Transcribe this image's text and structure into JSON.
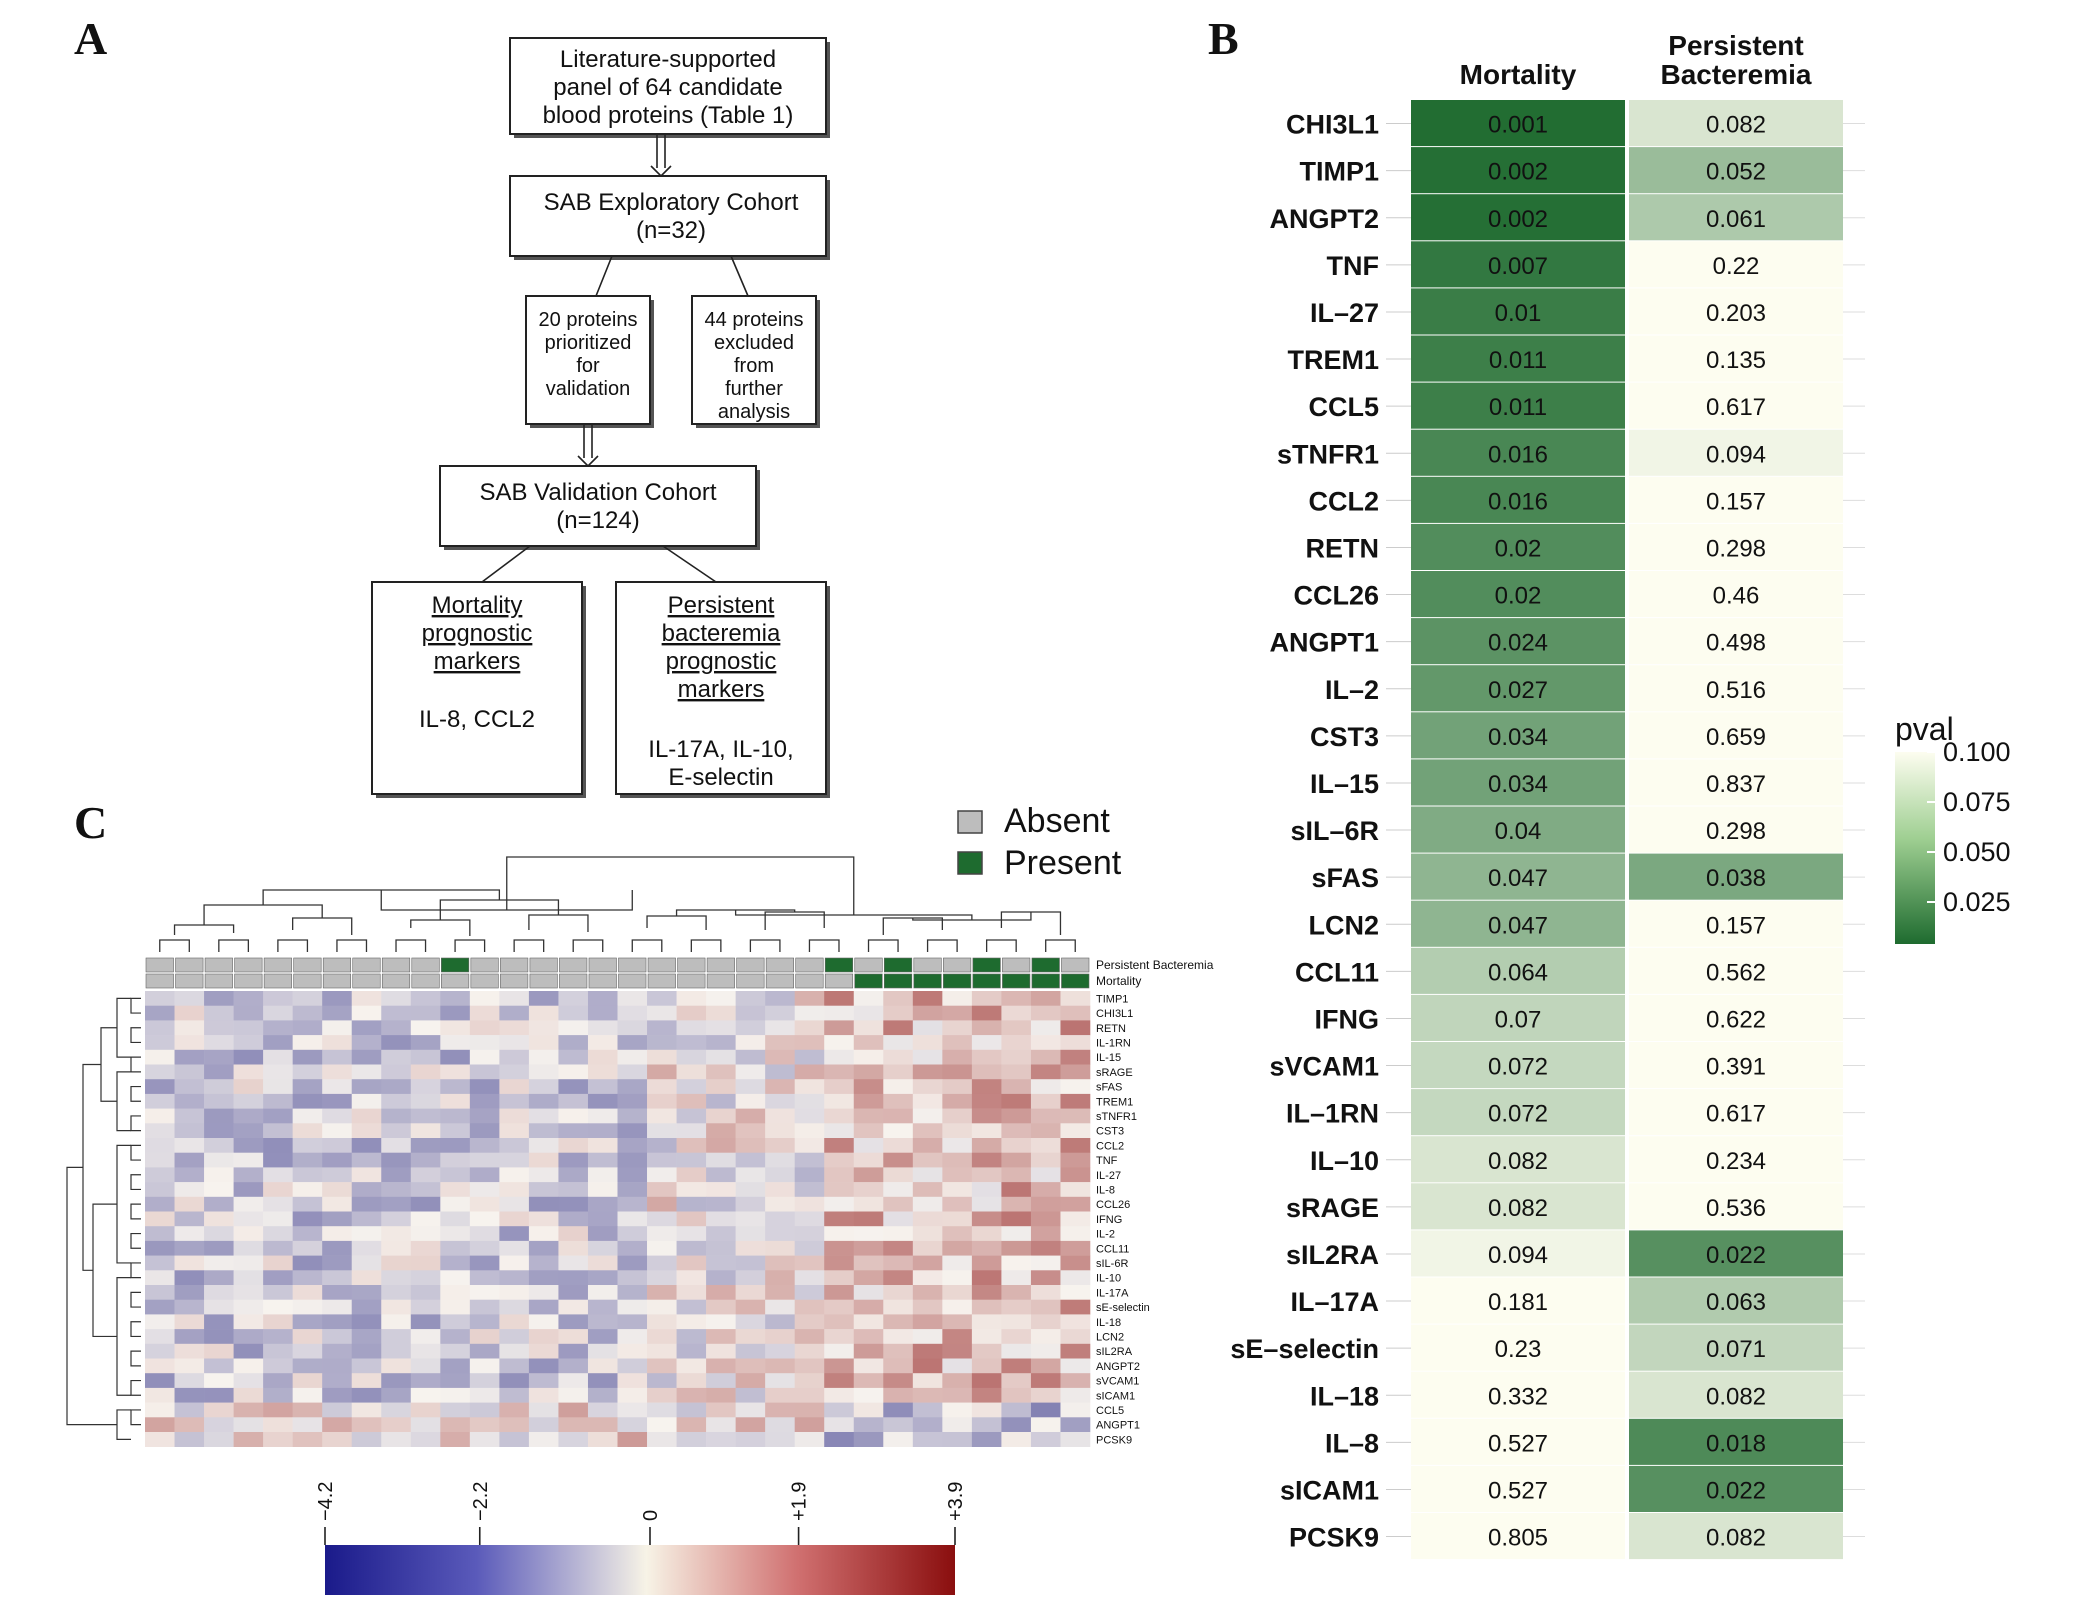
{
  "panels": {
    "a": "A",
    "b": "B",
    "c": "C"
  },
  "flowchart": {
    "box1": [
      "Literature-supported",
      "panel of 64 candidate",
      "blood proteins (Table 1)"
    ],
    "box2": [
      "SAB Exploratory Cohort",
      "(n=32)"
    ],
    "box3": [
      "20 proteins",
      "prioritized",
      "for",
      "validation"
    ],
    "box4": [
      "44 proteins",
      "excluded",
      "from",
      "further",
      "analysis"
    ],
    "box5": [
      "SAB Validation Cohort",
      "(n=124)"
    ],
    "box6_title": [
      "Mortality",
      "prognostic",
      "markers"
    ],
    "box6_body": [
      "IL-8, CCL2"
    ],
    "box7_title": [
      "Persistent",
      "bacteremia",
      "prognostic",
      "markers"
    ],
    "box7_body": [
      "IL-17A, IL-10,",
      "E-selectin"
    ]
  },
  "pval_table": {
    "col1_header": "Mortality",
    "col2_header": [
      "Persistent",
      "Bacteremia"
    ],
    "legend_title": "pval",
    "legend_ticks": [
      "0.100",
      "0.075",
      "0.050",
      "0.025"
    ],
    "colors": {
      "low": "#1e6b2f",
      "high": "#fdfdf0"
    },
    "rows": [
      {
        "protein": "CHI3L1",
        "mortality": "0.001",
        "bacteremia": "0.082"
      },
      {
        "protein": "TIMP1",
        "mortality": "0.002",
        "bacteremia": "0.052"
      },
      {
        "protein": "ANGPT2",
        "mortality": "0.002",
        "bacteremia": "0.061"
      },
      {
        "protein": "TNF",
        "mortality": "0.007",
        "bacteremia": "0.22"
      },
      {
        "protein": "IL–27",
        "mortality": "0.01",
        "bacteremia": "0.203"
      },
      {
        "protein": "TREM1",
        "mortality": "0.011",
        "bacteremia": "0.135"
      },
      {
        "protein": "CCL5",
        "mortality": "0.011",
        "bacteremia": "0.617"
      },
      {
        "protein": "sTNFR1",
        "mortality": "0.016",
        "bacteremia": "0.094"
      },
      {
        "protein": "CCL2",
        "mortality": "0.016",
        "bacteremia": "0.157"
      },
      {
        "protein": "RETN",
        "mortality": "0.02",
        "bacteremia": "0.298"
      },
      {
        "protein": "CCL26",
        "mortality": "0.02",
        "bacteremia": "0.46"
      },
      {
        "protein": "ANGPT1",
        "mortality": "0.024",
        "bacteremia": "0.498"
      },
      {
        "protein": "IL–2",
        "mortality": "0.027",
        "bacteremia": "0.516"
      },
      {
        "protein": "CST3",
        "mortality": "0.034",
        "bacteremia": "0.659"
      },
      {
        "protein": "IL–15",
        "mortality": "0.034",
        "bacteremia": "0.837"
      },
      {
        "protein": "sIL–6R",
        "mortality": "0.04",
        "bacteremia": "0.298"
      },
      {
        "protein": "sFAS",
        "mortality": "0.047",
        "bacteremia": "0.038"
      },
      {
        "protein": "LCN2",
        "mortality": "0.047",
        "bacteremia": "0.157"
      },
      {
        "protein": "CCL11",
        "mortality": "0.064",
        "bacteremia": "0.562"
      },
      {
        "protein": "IFNG",
        "mortality": "0.07",
        "bacteremia": "0.622"
      },
      {
        "protein": "sVCAM1",
        "mortality": "0.072",
        "bacteremia": "0.391"
      },
      {
        "protein": "IL–1RN",
        "mortality": "0.072",
        "bacteremia": "0.617"
      },
      {
        "protein": "IL–10",
        "mortality": "0.082",
        "bacteremia": "0.234"
      },
      {
        "protein": "sRAGE",
        "mortality": "0.082",
        "bacteremia": "0.536"
      },
      {
        "protein": "sIL2RA",
        "mortality": "0.094",
        "bacteremia": "0.022"
      },
      {
        "protein": "IL–17A",
        "mortality": "0.181",
        "bacteremia": "0.063"
      },
      {
        "protein": "sE–selectin",
        "mortality": "0.23",
        "bacteremia": "0.071"
      },
      {
        "protein": "IL–18",
        "mortality": "0.332",
        "bacteremia": "0.082"
      },
      {
        "protein": "IL–8",
        "mortality": "0.527",
        "bacteremia": "0.018"
      },
      {
        "protein": "sICAM1",
        "mortality": "0.527",
        "bacteremia": "0.022"
      },
      {
        "protein": "PCSK9",
        "mortality": "0.805",
        "bacteremia": "0.082"
      }
    ]
  },
  "heatmap": {
    "legend_absent": "Absent",
    "legend_present": "Present",
    "annotation_labels": [
      "Persistent Bacteremia",
      "Mortality"
    ],
    "colors": {
      "absent": "#bdbdbd",
      "present": "#1e6b2f",
      "low": "#202080",
      "mid": "#f7f3ee",
      "high": "#8c1010"
    },
    "row_labels": [
      "TIMP1",
      "CHI3L1",
      "RETN",
      "IL-1RN",
      "IL-15",
      "sRAGE",
      "sFAS",
      "TREM1",
      "sTNFR1",
      "CST3",
      "CCL2",
      "TNF",
      "IL-27",
      "IL-8",
      "CCL26",
      "IFNG",
      "IL-2",
      "CCL11",
      "sIL-6R",
      "IL-10",
      "IL-17A",
      "sE-selectin",
      "IL-18",
      "LCN2",
      "sIL2RA",
      "ANGPT2",
      "sVCAM1",
      "sICAM1",
      "CCL5",
      "ANGPT1",
      "PCSK9"
    ],
    "scale_ticks": [
      "−4.2",
      "−2.2",
      "0",
      "+1.9",
      "+3.9"
    ],
    "scale_values": [
      -4.2,
      -2.2,
      0,
      1.9,
      3.9
    ]
  }
}
